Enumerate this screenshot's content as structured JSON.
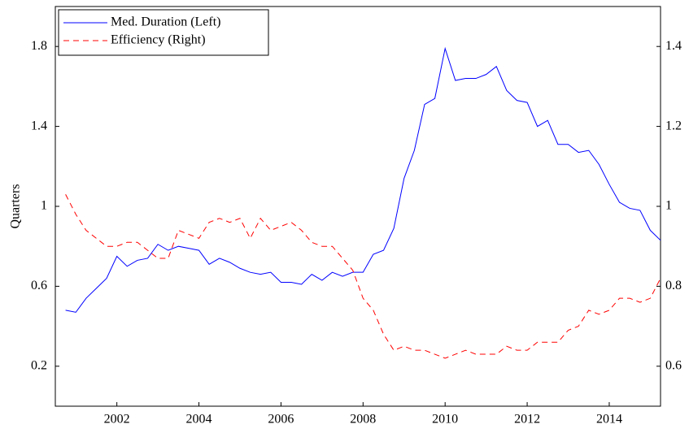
{
  "chart_data": {
    "type": "line",
    "y_label": "Quarters",
    "x": [
      2000.75,
      2001,
      2001.25,
      2001.5,
      2001.75,
      2002,
      2002.25,
      2002.5,
      2002.75,
      2003,
      2003.25,
      2003.5,
      2003.75,
      2004,
      2004.25,
      2004.5,
      2004.75,
      2005,
      2005.25,
      2005.5,
      2005.75,
      2006,
      2006.25,
      2006.5,
      2006.75,
      2007,
      2007.25,
      2007.5,
      2007.75,
      2008,
      2008.25,
      2008.5,
      2008.75,
      2009,
      2009.25,
      2009.5,
      2009.75,
      2010,
      2010.25,
      2010.5,
      2010.75,
      2011,
      2011.25,
      2011.5,
      2011.75,
      2012,
      2012.25,
      2012.5,
      2012.75,
      2013,
      2013.25,
      2013.5,
      2013.75,
      2014,
      2014.25,
      2014.5,
      2014.75,
      2015,
      2015.25
    ],
    "series": [
      {
        "name": "Med. Duration (Left)",
        "color": "#0000ff",
        "dash": false,
        "axis": "y",
        "values": [
          0.48,
          0.47,
          0.54,
          0.59,
          0.64,
          0.75,
          0.7,
          0.73,
          0.74,
          0.81,
          0.78,
          0.8,
          0.79,
          0.78,
          0.71,
          0.74,
          0.72,
          0.69,
          0.67,
          0.66,
          0.67,
          0.62,
          0.62,
          0.61,
          0.66,
          0.63,
          0.67,
          0.65,
          0.67,
          0.67,
          0.76,
          0.78,
          0.89,
          1.14,
          1.28,
          1.51,
          1.54,
          1.79,
          1.63,
          1.64,
          1.64,
          1.66,
          1.7,
          1.58,
          1.53,
          1.52,
          1.4,
          1.43,
          1.31,
          1.31,
          1.27,
          1.28,
          1.21,
          1.11,
          1.02,
          0.99,
          0.98,
          0.88,
          0.83
        ]
      },
      {
        "name": "Efficiency (Right)",
        "color": "#ff0000",
        "dash": true,
        "axis": "y2",
        "values": [
          1.03,
          0.98,
          0.94,
          0.92,
          0.9,
          0.9,
          0.91,
          0.91,
          0.89,
          0.87,
          0.87,
          0.94,
          0.93,
          0.92,
          0.96,
          0.97,
          0.96,
          0.97,
          0.92,
          0.97,
          0.94,
          0.95,
          0.96,
          0.94,
          0.91,
          0.9,
          0.9,
          0.87,
          0.84,
          0.77,
          0.74,
          0.68,
          0.64,
          0.65,
          0.64,
          0.64,
          0.63,
          0.62,
          0.63,
          0.64,
          0.63,
          0.63,
          0.63,
          0.65,
          0.64,
          0.64,
          0.66,
          0.66,
          0.66,
          0.69,
          0.7,
          0.74,
          0.73,
          0.74,
          0.77,
          0.77,
          0.76,
          0.77,
          0.82
        ]
      }
    ],
    "xlim": [
      2000.5,
      2015.25
    ],
    "xticks": [
      2002,
      2004,
      2006,
      2008,
      2010,
      2012,
      2014
    ],
    "ylim": [
      0,
      2
    ],
    "yticks": [
      0.2,
      0.6,
      1,
      1.4,
      1.8
    ],
    "y2lim": [
      0.5,
      1.5
    ],
    "y2ticks": [
      0.6,
      0.8,
      1,
      1.2,
      1.4
    ],
    "legend": "top-left"
  }
}
